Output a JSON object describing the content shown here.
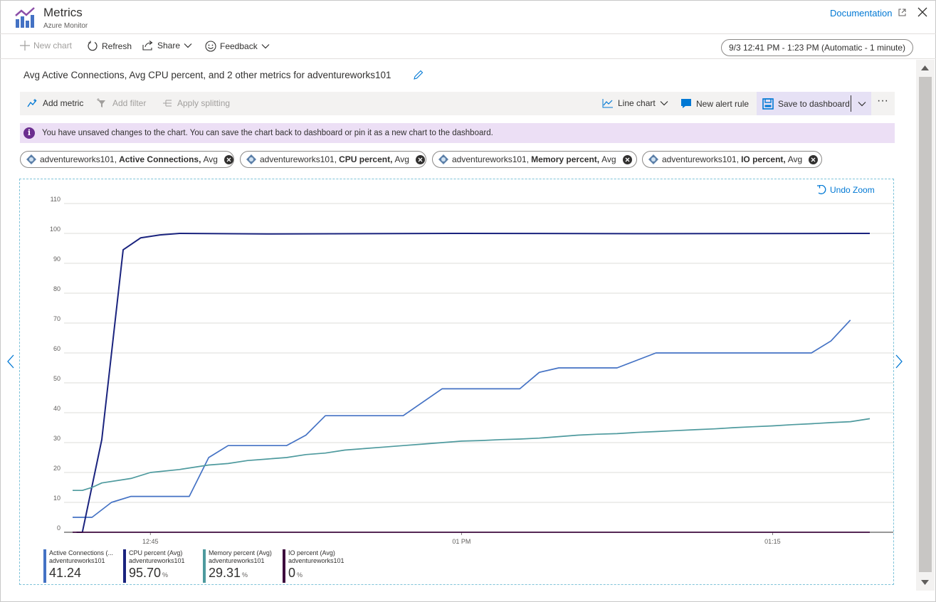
{
  "header": {
    "title": "Metrics",
    "subtitle": "Azure Monitor",
    "documentation_label": "Documentation"
  },
  "commandbar": {
    "new_chart": "New chart",
    "refresh": "Refresh",
    "share": "Share",
    "feedback": "Feedback",
    "time_range": "9/3 12:41 PM - 1:23 PM (Automatic - 1 minute)"
  },
  "chart": {
    "title": "Avg Active Connections, Avg CPU percent, and 2 other metrics for adventureworks101",
    "toolbar": {
      "add_metric": "Add metric",
      "add_filter": "Add filter",
      "apply_splitting": "Apply splitting",
      "chart_type": "Line chart",
      "new_alert_rule": "New alert rule",
      "save_to_dashboard": "Save to dashboard",
      "more": "···"
    },
    "banner": "You have unsaved changes to the chart. You can save the chart back to dashboard or pin it as a new chart to the dashboard.",
    "pills": [
      {
        "resource": "adventureworks101,",
        "metric": "Active Connections,",
        "agg": "Avg"
      },
      {
        "resource": "adventureworks101,",
        "metric": "CPU percent,",
        "agg": "Avg"
      },
      {
        "resource": "adventureworks101,",
        "metric": "Memory percent,",
        "agg": "Avg"
      },
      {
        "resource": "adventureworks101,",
        "metric": "IO percent,",
        "agg": "Avg"
      }
    ],
    "undo_zoom": "Undo Zoom"
  },
  "legend": [
    {
      "name": "Active Connections (...",
      "resource": "adventureworks101",
      "value": "41.24",
      "unit": "",
      "color": "#4472c4"
    },
    {
      "name": "CPU percent (Avg)",
      "resource": "adventureworks101",
      "value": "95.70",
      "unit": "%",
      "color": "#1a237e"
    },
    {
      "name": "Memory percent (Avg)",
      "resource": "adventureworks101",
      "value": "29.31",
      "unit": "%",
      "color": "#4e9a9e"
    },
    {
      "name": "IO percent (Avg)",
      "resource": "adventureworks101",
      "value": "0",
      "unit": "%",
      "color": "#3d0a3d"
    }
  ],
  "chart_data": {
    "type": "line",
    "ylim": [
      0,
      110
    ],
    "yticks": [
      0,
      10,
      20,
      30,
      40,
      50,
      60,
      70,
      80,
      90,
      100,
      110
    ],
    "xlim": [
      0,
      41
    ],
    "xtick_positions": [
      4,
      20,
      36
    ],
    "xtick_labels": [
      "12:45",
      "01 PM",
      "01:15"
    ],
    "grid": true,
    "series": [
      {
        "name": "Active Connections (Avg)",
        "color": "#4472c4",
        "x": [
          0,
          1,
          2,
          3,
          4,
          5,
          6,
          7,
          8,
          9,
          10,
          11,
          12,
          13,
          14,
          15,
          16,
          17,
          18,
          19,
          20,
          21,
          22,
          23,
          24,
          25,
          26,
          27,
          28,
          29,
          30,
          31,
          32,
          33,
          34,
          35,
          36,
          37,
          38,
          39,
          40
        ],
        "y": [
          5,
          5,
          10,
          12,
          12,
          12,
          12,
          25,
          29,
          29,
          29,
          29,
          32.5,
          39,
          39,
          39,
          39,
          39,
          43.5,
          48,
          48,
          48,
          48,
          48,
          53.5,
          55,
          55,
          55,
          55,
          57.5,
          60,
          60,
          60,
          60,
          60,
          60,
          60,
          60,
          60,
          64,
          71
        ]
      },
      {
        "name": "CPU percent (Avg)",
        "color": "#1a237e",
        "x": [
          0.2,
          0.5,
          1.5,
          2.6,
          3.5,
          4.5,
          5.5,
          10,
          20,
          30,
          40,
          41
        ],
        "y": [
          0,
          0,
          31,
          94.5,
          98.5,
          99.5,
          100,
          99.8,
          100,
          99.9,
          100,
          100
        ]
      },
      {
        "name": "Memory percent (Avg)",
        "color": "#4e9a9e",
        "x": [
          0,
          0.5,
          1,
          1.5,
          3,
          4,
          5.5,
          7,
          8,
          9,
          10,
          11,
          12,
          13,
          14,
          15,
          16,
          17,
          18,
          19,
          20,
          21,
          22,
          23,
          24,
          25,
          26,
          27,
          28,
          29,
          30,
          31,
          32,
          33,
          34,
          35,
          36,
          37,
          38,
          39,
          40,
          41
        ],
        "y": [
          14,
          14,
          15,
          16.5,
          18,
          20,
          21,
          22.5,
          23,
          24,
          24.5,
          25,
          26,
          26.5,
          27.5,
          28,
          28.5,
          29,
          29.5,
          30,
          30.5,
          30.7,
          31,
          31.2,
          31.5,
          32,
          32.5,
          32.8,
          33,
          33.4,
          33.7,
          34,
          34.3,
          34.6,
          35,
          35.3,
          35.6,
          36,
          36.3,
          36.7,
          37,
          38
        ]
      },
      {
        "name": "IO percent (Avg)",
        "color": "#3d0a3d",
        "x": [
          0,
          41
        ],
        "y": [
          0,
          0
        ]
      }
    ]
  }
}
